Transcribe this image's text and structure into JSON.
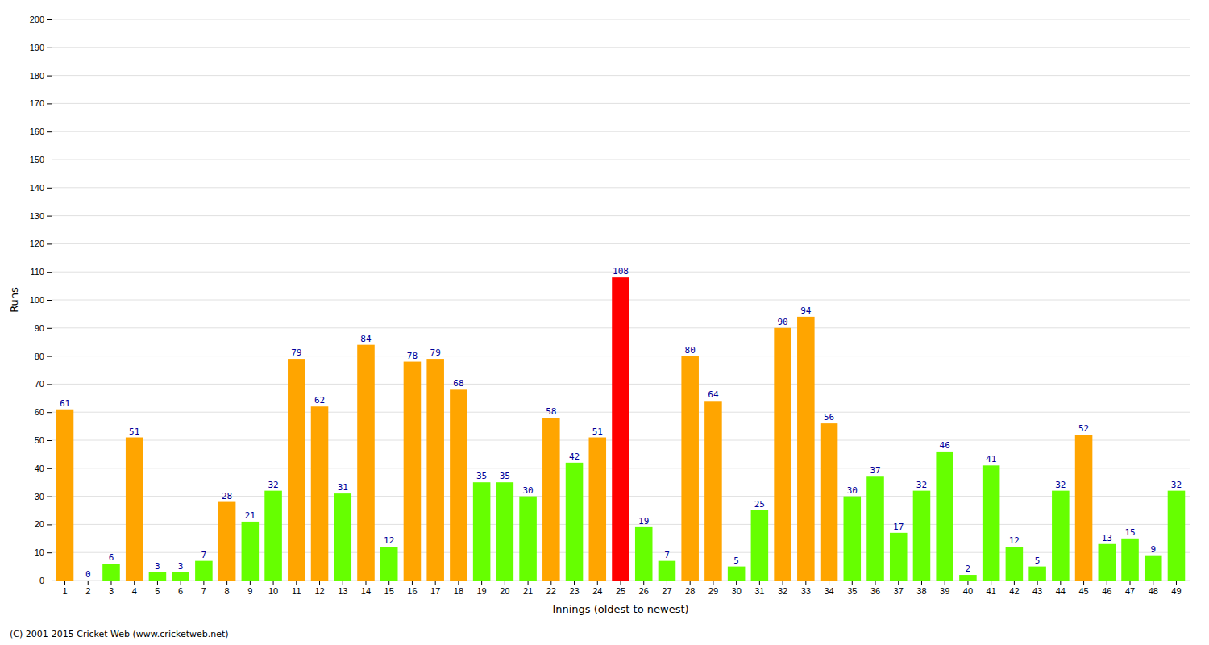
{
  "chart_data": {
    "type": "bar",
    "xlabel": "Innings (oldest to newest)",
    "ylabel": "Runs",
    "annotations": [
      "(C) 2001-2015 Cricket Web (www.cricketweb.net)"
    ],
    "categories": [
      "1",
      "2",
      "3",
      "4",
      "5",
      "6",
      "7",
      "8",
      "9",
      "10",
      "11",
      "12",
      "13",
      "14",
      "15",
      "16",
      "17",
      "18",
      "19",
      "20",
      "21",
      "22",
      "23",
      "24",
      "25",
      "26",
      "27",
      "28",
      "29",
      "30",
      "31",
      "32",
      "33",
      "34",
      "35",
      "36",
      "37",
      "38",
      "39",
      "40",
      "41",
      "42",
      "43",
      "44",
      "45",
      "46",
      "47",
      "48",
      "49"
    ],
    "values": [
      61,
      0,
      6,
      51,
      3,
      3,
      7,
      28,
      21,
      32,
      79,
      62,
      31,
      84,
      12,
      78,
      79,
      68,
      35,
      35,
      30,
      58,
      42,
      51,
      108,
      19,
      7,
      80,
      64,
      5,
      25,
      90,
      94,
      56,
      30,
      37,
      17,
      32,
      46,
      2,
      41,
      12,
      5,
      32,
      52,
      13,
      15,
      9,
      32
    ],
    "colors": [
      "#FFA500",
      "#66FF00",
      "#66FF00",
      "#FFA500",
      "#66FF00",
      "#66FF00",
      "#66FF00",
      "#FFA500",
      "#66FF00",
      "#66FF00",
      "#FFA500",
      "#FFA500",
      "#66FF00",
      "#FFA500",
      "#66FF00",
      "#FFA500",
      "#FFA500",
      "#FFA500",
      "#66FF00",
      "#66FF00",
      "#66FF00",
      "#FFA500",
      "#66FF00",
      "#FFA500",
      "#FF0000",
      "#66FF00",
      "#66FF00",
      "#FFA500",
      "#FFA500",
      "#66FF00",
      "#66FF00",
      "#FFA500",
      "#FFA500",
      "#FFA500",
      "#66FF00",
      "#66FF00",
      "#66FF00",
      "#66FF00",
      "#66FF00",
      "#66FF00",
      "#66FF00",
      "#66FF00",
      "#66FF00",
      "#66FF00",
      "#FFA500",
      "#66FF00",
      "#66FF00",
      "#66FF00",
      "#66FF00"
    ],
    "ylim": [
      0,
      200
    ],
    "yticks": [
      0,
      10,
      20,
      30,
      40,
      50,
      60,
      70,
      80,
      90,
      100,
      110,
      120,
      130,
      140,
      150,
      160,
      170,
      180,
      190,
      200
    ],
    "grid": true,
    "data_labels": true
  }
}
